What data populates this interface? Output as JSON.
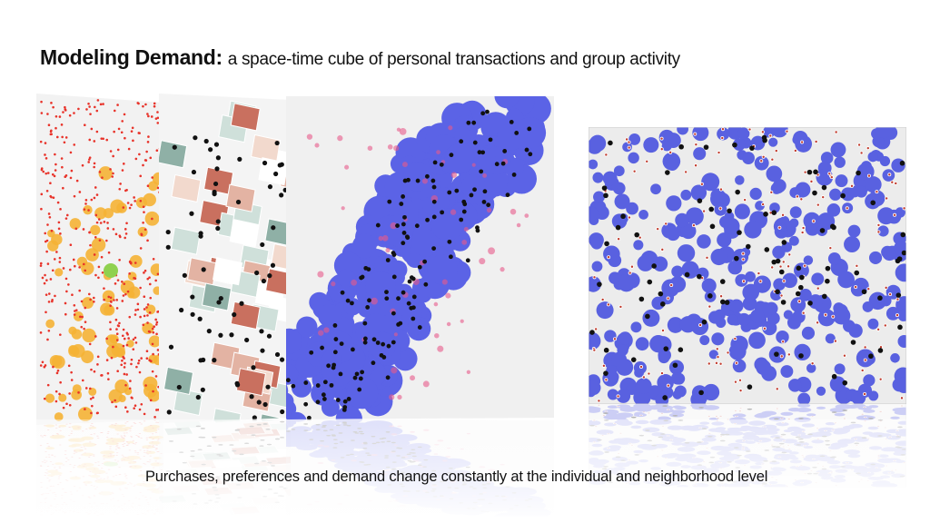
{
  "slide": {
    "title_bold": "Modeling Demand:",
    "title_rest": "a space-time cube of personal transactions and group activity",
    "caption": "Purchases, preferences and demand change constantly at the individual and neighborhood level"
  },
  "panels": [
    {
      "name": "point-map-orange-red",
      "colors": {
        "base": "#f2f2f2",
        "large": "#f5b335",
        "small": "#e8332a",
        "highlight": "#8fd14f"
      }
    },
    {
      "name": "choropleth-map",
      "colors": {
        "base": "#f4f4f4",
        "fills": [
          "#c9705f",
          "#e3b3a3",
          "#cfe0da",
          "#8fb0a6",
          "#f2d9cd",
          "#fff"
        ],
        "points": "#111111"
      }
    },
    {
      "name": "density-map-blue",
      "colors": {
        "base": "#f0f0f0",
        "density": "#5b63e6",
        "hot": "#e85a8a",
        "points": "#111111"
      }
    },
    {
      "name": "cluster-map-blue",
      "colors": {
        "base": "#ececec",
        "density": "#5961e0",
        "points": "#111111",
        "center": "#c0392b"
      }
    }
  ]
}
